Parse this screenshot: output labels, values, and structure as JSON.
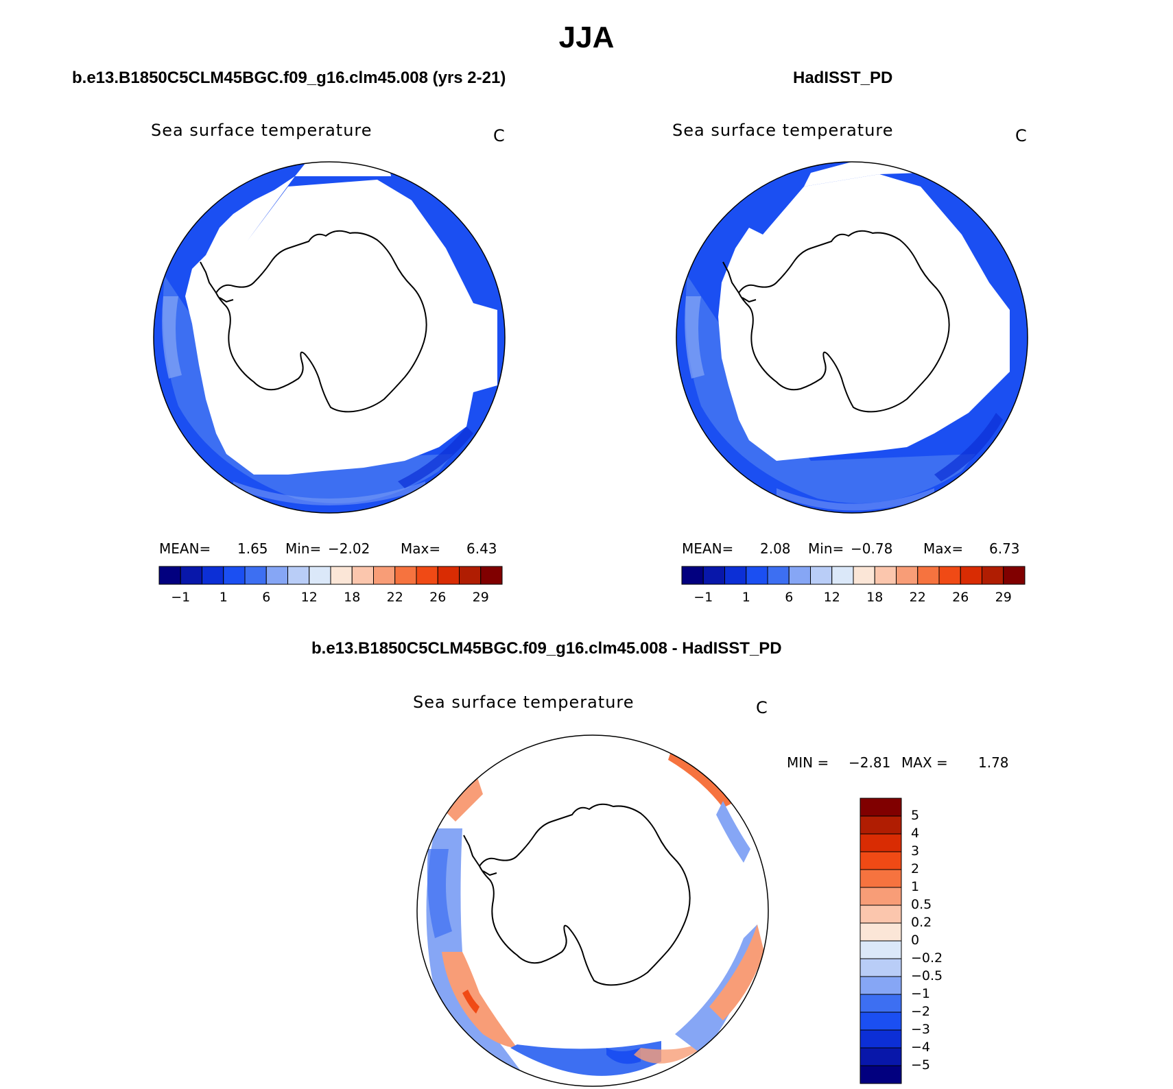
{
  "figure": {
    "title": "JJA",
    "difference_title": "b.e13.B1850C5CLM45BGC.f09_g16.clm45.008 - HadISST_PD"
  },
  "panels": [
    {
      "title": "b.e13.B1850C5CLM45BGC.f09_g16.clm45.008 (yrs 2-21)",
      "variable": "Sea surface temperature",
      "units": "C",
      "mean_label": "MEAN=",
      "mean": "1.65",
      "min_label": "Min=",
      "min": "−2.02",
      "max_label": "Max=",
      "max": "6.43",
      "colorbar_ticks": [
        "−1",
        "1",
        "6",
        "12",
        "18",
        "22",
        "26",
        "29"
      ]
    },
    {
      "title": "HadISST_PD",
      "variable": "Sea surface temperature",
      "units": "C",
      "mean_label": "MEAN=",
      "mean": "2.08",
      "min_label": "Min=",
      "min": "−0.78",
      "max_label": "Max=",
      "max": "6.73",
      "colorbar_ticks": [
        "−1",
        "1",
        "6",
        "12",
        "18",
        "22",
        "26",
        "29"
      ]
    }
  ],
  "difference": {
    "variable": "Sea surface temperature",
    "units": "C",
    "min_label": "MIN =",
    "min": "−2.81",
    "max_label": "MAX =",
    "max": "1.78",
    "colorbar_ticks": [
      "5",
      "4",
      "3",
      "2",
      "1",
      "0.5",
      "0.2",
      "0",
      "−0.2",
      "−0.5",
      "−1",
      "−2",
      "−3",
      "−4",
      "−5"
    ]
  },
  "colors": {
    "sst_scale": [
      "#02007f",
      "#0817aa",
      "#0c2fd6",
      "#1b4ff2",
      "#3d6ff2",
      "#86a6f5",
      "#b9cdf7",
      "#dbe8f9",
      "#fbe6d7",
      "#fbc6ad",
      "#f89d77",
      "#f6733f",
      "#f04a15",
      "#d92c03",
      "#b01d02",
      "#800000"
    ],
    "diff_scale": [
      "#800000",
      "#b01d02",
      "#d92c03",
      "#f04a15",
      "#f6733f",
      "#f89d77",
      "#fbc6ad",
      "#fbe6d7",
      "#dbe8f9",
      "#b9cdf7",
      "#86a6f5",
      "#3d6ff2",
      "#1b4ff2",
      "#0c2fd6",
      "#0817aa",
      "#02007f"
    ]
  }
}
